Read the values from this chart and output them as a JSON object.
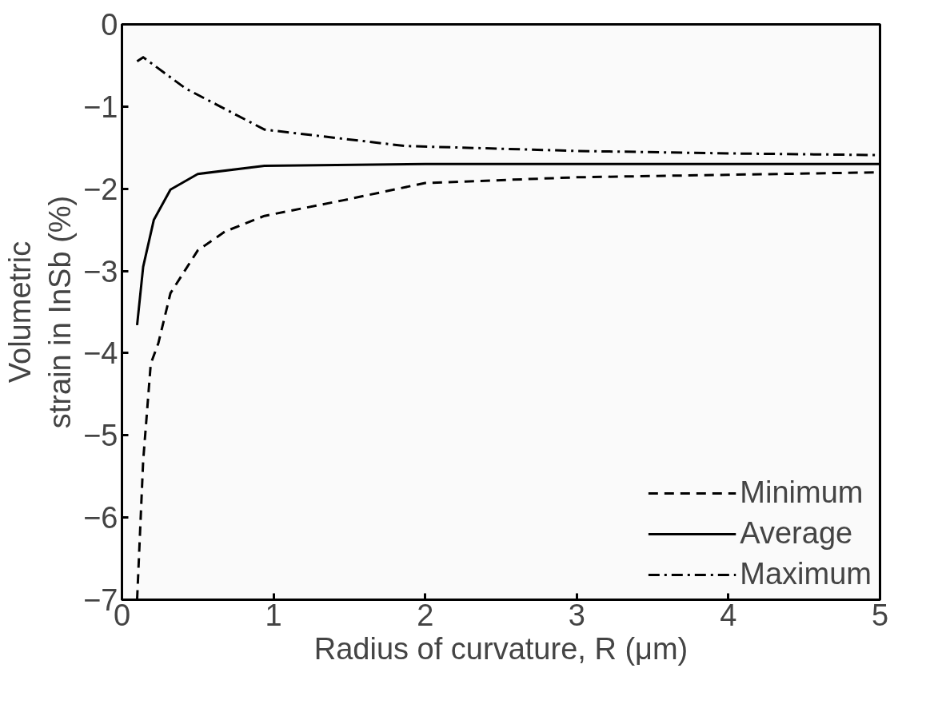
{
  "chart_data": {
    "type": "line",
    "xlabel": "Radius of curvature, R (μm)",
    "ylabel": "Volumetric\nstrain in InSb (%)",
    "xlim": [
      0,
      5
    ],
    "ylim": [
      -7,
      0
    ],
    "xticks": [
      0,
      1,
      2,
      3,
      4,
      5
    ],
    "yticks": [
      -7,
      -6,
      -5,
      -4,
      -3,
      -2,
      -1,
      0
    ],
    "grid": false,
    "legend": "bottom right",
    "series": [
      {
        "name": "Minimum",
        "color": "#000000",
        "line_style": "dashed",
        "x": [
          0.1,
          0.14,
          0.19,
          0.24,
          0.32,
          0.5,
          0.68,
          0.94,
          1.46,
          2.0,
          3.0,
          4.0,
          5.0
        ],
        "values": [
          -7.0,
          -5.31,
          -4.13,
          -3.88,
          -3.27,
          -2.75,
          -2.52,
          -2.33,
          -2.14,
          -1.93,
          -1.86,
          -1.83,
          -1.8
        ]
      },
      {
        "name": "Average",
        "color": "#000000",
        "line_style": "solid",
        "x": [
          0.1,
          0.14,
          0.21,
          0.32,
          0.5,
          0.94,
          2.0,
          3.0,
          4.0,
          5.0
        ],
        "values": [
          -3.66,
          -2.95,
          -2.38,
          -2.01,
          -1.82,
          -1.72,
          -1.7,
          -1.7,
          -1.7,
          -1.7
        ]
      },
      {
        "name": "Maximum",
        "color": "#000000",
        "line_style": "dashdot",
        "x": [
          0.1,
          0.14,
          0.42,
          0.94,
          1.87,
          3.0,
          4.0,
          5.0
        ],
        "values": [
          -0.45,
          -0.4,
          -0.78,
          -1.28,
          -1.48,
          -1.54,
          -1.57,
          -1.59
        ]
      }
    ]
  }
}
